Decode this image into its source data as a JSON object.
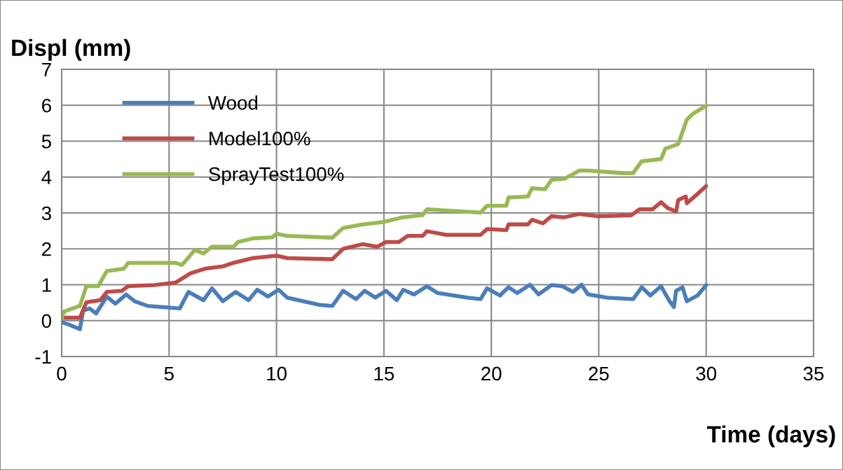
{
  "chart_data": {
    "type": "line",
    "xlabel": "Time (days)",
    "ylabel": "Displ (mm)",
    "xlim": [
      0,
      35
    ],
    "xticks": [
      0,
      5,
      10,
      15,
      20,
      25,
      30,
      35
    ],
    "ylim": [
      -1,
      7
    ],
    "yticks": [
      -1,
      0,
      1,
      2,
      3,
      4,
      5,
      6,
      7
    ],
    "grid": true,
    "legend": "top left",
    "marker": "none",
    "line_style": "solid",
    "series": [
      {
        "name": "Wood",
        "color": "#4a7ebb",
        "x": [
          0,
          0.3,
          0.85,
          1.0,
          1.3,
          1.6,
          2.1,
          2.5,
          3.0,
          3.4,
          4.0,
          5.5,
          5.9,
          6.6,
          7.0,
          7.5,
          8.1,
          8.7,
          9.1,
          9.6,
          10.1,
          10.5,
          12.0,
          12.6,
          13.1,
          13.7,
          14.1,
          14.6,
          15.1,
          15.6,
          15.9,
          16.4,
          17.0,
          17.5,
          18.9,
          19.5,
          19.8,
          20.4,
          20.8,
          21.2,
          21.8,
          22.2,
          22.8,
          23.3,
          23.8,
          24.2,
          24.5,
          25.4,
          26.6,
          27.0,
          27.4,
          27.9,
          28.3,
          28.5,
          28.6,
          28.9,
          29.1,
          29.6,
          30.0
        ],
        "values": [
          -0.05,
          -0.1,
          -0.24,
          0.28,
          0.34,
          0.2,
          0.67,
          0.47,
          0.73,
          0.54,
          0.41,
          0.34,
          0.8,
          0.57,
          0.9,
          0.54,
          0.8,
          0.57,
          0.86,
          0.67,
          0.86,
          0.64,
          0.44,
          0.41,
          0.83,
          0.6,
          0.83,
          0.64,
          0.83,
          0.57,
          0.86,
          0.73,
          0.96,
          0.77,
          0.64,
          0.6,
          0.9,
          0.7,
          0.93,
          0.77,
          1.0,
          0.73,
          0.99,
          0.96,
          0.8,
          1.0,
          0.73,
          0.64,
          0.6,
          0.93,
          0.7,
          0.96,
          0.54,
          0.38,
          0.83,
          0.93,
          0.54,
          0.7,
          0.99
        ]
      },
      {
        "name": "Model100%",
        "color": "#be4b48",
        "x": [
          0,
          0.85,
          1.15,
          1.8,
          2.1,
          2.8,
          3.1,
          4.3,
          5.3,
          6.0,
          6.7,
          7.5,
          8.0,
          8.9,
          10.0,
          10.5,
          12.6,
          13.1,
          14.0,
          14.7,
          15.1,
          15.7,
          16.1,
          16.8,
          17.0,
          17.9,
          19.5,
          19.8,
          20.7,
          20.8,
          21.7,
          21.9,
          22.4,
          22.8,
          23.4,
          24.1,
          24.9,
          26.5,
          26.9,
          27.5,
          27.9,
          28.2,
          28.6,
          28.7,
          29.05,
          29.1,
          29.6,
          30.0
        ],
        "values": [
          0.08,
          0.08,
          0.51,
          0.57,
          0.8,
          0.83,
          0.96,
          0.99,
          1.06,
          1.32,
          1.45,
          1.51,
          1.61,
          1.74,
          1.81,
          1.74,
          1.71,
          2.0,
          2.13,
          2.06,
          2.19,
          2.19,
          2.36,
          2.36,
          2.49,
          2.39,
          2.39,
          2.55,
          2.52,
          2.68,
          2.68,
          2.81,
          2.71,
          2.91,
          2.88,
          2.97,
          2.91,
          2.93,
          3.1,
          3.1,
          3.3,
          3.14,
          3.04,
          3.36,
          3.46,
          3.27,
          3.53,
          3.75
        ]
      },
      {
        "name": "SprayTest100%",
        "color": "#98b954",
        "x": [
          0,
          0.1,
          0.85,
          1.15,
          1.7,
          2.1,
          2.9,
          3.1,
          5.3,
          5.6,
          6.2,
          6.6,
          7.0,
          8.0,
          8.2,
          8.9,
          9.8,
          10.0,
          10.5,
          12.6,
          13.1,
          14.0,
          15.0,
          15.9,
          16.8,
          17.0,
          17.9,
          19.5,
          19.8,
          20.7,
          20.8,
          21.7,
          21.9,
          22.5,
          22.8,
          23.4,
          24.1,
          24.5,
          26.1,
          26.6,
          27.0,
          27.9,
          28.1,
          28.7,
          29.1,
          29.4,
          30.0
        ],
        "values": [
          0.05,
          0.25,
          0.41,
          0.96,
          0.96,
          1.38,
          1.45,
          1.61,
          1.61,
          1.55,
          1.97,
          1.87,
          2.06,
          2.06,
          2.19,
          2.29,
          2.32,
          2.42,
          2.36,
          2.31,
          2.58,
          2.68,
          2.75,
          2.88,
          2.94,
          3.1,
          3.07,
          3.01,
          3.2,
          3.2,
          3.43,
          3.46,
          3.69,
          3.66,
          3.92,
          3.95,
          4.18,
          4.18,
          4.11,
          4.11,
          4.44,
          4.5,
          4.79,
          4.92,
          5.6,
          5.77,
          5.99
        ]
      }
    ]
  }
}
